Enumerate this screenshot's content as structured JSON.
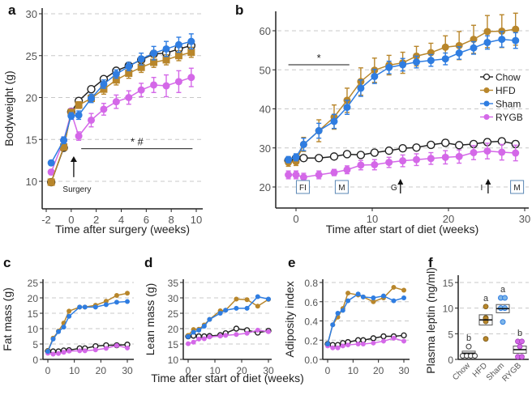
{
  "colors": {
    "Chow": "#222222",
    "HFD": "#b8862b",
    "Sham": "#2f7de1",
    "RYGB": "#d468e8",
    "box": "#5b87b5"
  },
  "chart_data": [
    {
      "id": "a",
      "type": "line",
      "panel_label": "a",
      "title": "",
      "xlabel": "Time after surgery (weeks)",
      "ylabel": "Bodyweight (g)",
      "xlim": [
        -2.3,
        10.2
      ],
      "ylim": [
        7.5,
        30
      ],
      "xticks": [
        -2,
        0,
        2,
        4,
        6,
        8,
        10
      ],
      "yticks": [
        10,
        15,
        20,
        25,
        30
      ],
      "grid": true,
      "x": [
        -1.6,
        -0.6,
        0,
        0.6,
        1.6,
        2.6,
        3.6,
        4.6,
        5.6,
        6.6,
        7.6,
        8.6,
        9.6
      ],
      "series": [
        {
          "name": "Chow",
          "marker": "open-circle",
          "values": [
            9.9,
            14.0,
            18.3,
            19.6,
            21.0,
            22.2,
            23.2,
            23.8,
            24.5,
            25.2,
            25.3,
            25.8,
            26.2
          ],
          "err": [
            0.3,
            0.3,
            0.3,
            0.3,
            0.3,
            0.3,
            0.3,
            0.3,
            0.4,
            0.4,
            0.4,
            0.5,
            0.5
          ]
        },
        {
          "name": "HFD",
          "marker": "square",
          "values": [
            9.9,
            14.1,
            18.2,
            19.1,
            19.9,
            21.0,
            22.1,
            22.9,
            23.6,
            24.2,
            24.5,
            25.0,
            25.4
          ],
          "err": [
            0.4,
            0.4,
            0.4,
            0.4,
            0.4,
            0.6,
            0.6,
            0.6,
            0.6,
            0.6,
            0.6,
            0.6,
            0.6
          ]
        },
        {
          "name": "Sham",
          "marker": "circle",
          "values": [
            12.2,
            14.9,
            17.8,
            17.9,
            19.9,
            21.6,
            22.8,
            23.7,
            24.6,
            25.3,
            25.8,
            26.3,
            26.7
          ],
          "err": [
            0.3,
            0.4,
            0.4,
            0.5,
            0.5,
            0.5,
            0.5,
            0.5,
            0.7,
            0.8,
            0.9,
            0.9,
            0.9
          ]
        },
        {
          "name": "RYGB",
          "marker": "circle",
          "values": [
            11.1,
            14.9,
            18.2,
            15.4,
            17.3,
            18.6,
            19.5,
            20.0,
            20.9,
            21.5,
            21.4,
            21.9,
            22.4
          ],
          "err": [
            0.3,
            0.4,
            0.5,
            0.5,
            0.8,
            0.7,
            0.8,
            0.8,
            0.8,
            0.9,
            1.3,
            1.3,
            1.1
          ]
        }
      ],
      "annotations": [
        {
          "text": "Surgery",
          "type": "arrow",
          "x": 0.2,
          "y_tip": 13,
          "y_base": 10.5
        },
        {
          "text": "* #",
          "type": "sigbar",
          "x_range": [
            0.8,
            9.7
          ],
          "y": 13.9
        }
      ]
    },
    {
      "id": "b",
      "type": "line",
      "panel_label": "b",
      "title": "",
      "xlabel": "Time after start of diet (weeks)",
      "ylabel": "",
      "xlim": [
        -2.5,
        30.5
      ],
      "ylim": [
        15,
        65
      ],
      "xticks": [
        0,
        10,
        20,
        30
      ],
      "yticks": [
        20,
        30,
        40,
        50,
        60
      ],
      "grid": true,
      "legend": "right",
      "legend_entries": [
        "Chow",
        "HFD",
        "Sham",
        "RYGB"
      ],
      "x": [
        -1,
        0,
        1,
        3,
        5,
        6.7,
        8.5,
        10.3,
        12.2,
        14,
        15.8,
        17.7,
        19.6,
        21.4,
        23.3,
        25.1,
        27,
        28.8
      ],
      "series": [
        {
          "name": "Chow",
          "marker": "open-circle",
          "values": [
            26.8,
            27.4,
            27.4,
            27.4,
            27.8,
            28.4,
            28.2,
            28.8,
            29.3,
            29.9,
            30.1,
            30.8,
            31.3,
            30.7,
            31.0,
            31.5,
            31.7,
            31.0
          ],
          "err": [
            0.6,
            0.6,
            0.6,
            0.6,
            0.6,
            0.6,
            0.7,
            0.7,
            0.7,
            0.7,
            0.7,
            0.7,
            0.8,
            0.7,
            0.7,
            0.8,
            0.8,
            0.8
          ]
        },
        {
          "name": "HFD",
          "marker": "circle",
          "values": [
            26.3,
            26.5,
            30.9,
            34.4,
            37.9,
            42.2,
            47.0,
            49.9,
            51.2,
            51.8,
            53.5,
            54.4,
            55.8,
            56.2,
            57.8,
            59.8,
            59.9,
            60.4
          ],
          "err": [
            1,
            1,
            1.8,
            2.8,
            3.1,
            3.1,
            3.5,
            3.1,
            2.5,
            2.7,
            2.5,
            2.4,
            2.9,
            3.6,
            3.6,
            4.1,
            4.2,
            4.1
          ]
        },
        {
          "name": "Sham",
          "marker": "circle",
          "values": [
            27.0,
            27.6,
            30.9,
            34.4,
            36.8,
            40.4,
            45.3,
            48.3,
            50.6,
            51.3,
            52.0,
            52.4,
            52.8,
            54.3,
            55.6,
            57.0,
            57.8,
            57.5
          ],
          "err": [
            0.8,
            0.9,
            1.6,
            1.9,
            1.8,
            1.8,
            2.1,
            1.8,
            1.6,
            1.6,
            1.5,
            1.5,
            1.5,
            1.6,
            1.6,
            1.7,
            2.0,
            2.0
          ]
        },
        {
          "name": "RYGB",
          "marker": "circle",
          "values": [
            23.1,
            23.1,
            22.5,
            23.1,
            23.7,
            24.4,
            25.6,
            25.7,
            26.3,
            26.7,
            27.0,
            27.3,
            27.6,
            27.8,
            28.8,
            29.2,
            28.9,
            28.7
          ],
          "err": [
            1,
            1,
            1,
            1,
            0.8,
            1,
            1.2,
            1.3,
            1.3,
            1.5,
            1.5,
            1.5,
            1.7,
            1.7,
            1.8,
            2,
            2,
            2
          ]
        }
      ],
      "annotations": [
        {
          "text": "*",
          "type": "sigbar",
          "x_range": [
            -1,
            7
          ],
          "y": 51.3
        },
        {
          "text": "FI",
          "type": "box",
          "x": 0.9
        },
        {
          "text": "M",
          "type": "box",
          "x": 6
        },
        {
          "text": "G",
          "type": "arrow",
          "x": 13.7
        },
        {
          "text": "I",
          "type": "arrow",
          "x": 25.2
        },
        {
          "text": "M",
          "type": "box",
          "x": 29
        }
      ]
    },
    {
      "id": "c",
      "type": "line",
      "panel_label": "c",
      "xlabel": "",
      "ylabel": "Fat mass (g)",
      "xlim": [
        -1.5,
        31.5
      ],
      "ylim": [
        0,
        25
      ],
      "xticks": [
        0,
        10,
        20,
        30
      ],
      "yticks": [
        0,
        5,
        10,
        15,
        20,
        25
      ],
      "grid": true,
      "x": [
        0,
        2,
        4,
        6,
        8,
        12,
        14,
        18,
        22,
        26,
        30
      ],
      "series": [
        {
          "name": "Chow",
          "marker": "open-circle",
          "values": [
            2.7,
            2.6,
            2.6,
            2.9,
            3.0,
            3.6,
            3.6,
            4.3,
            4.6,
            4.6,
            4.8
          ]
        },
        {
          "name": "HFD",
          "marker": "circle",
          "values": [
            2.8,
            6.9,
            9.2,
            11.8,
            15.7,
            17.0,
            17.0,
            17.6,
            18.9,
            20.8,
            21.5
          ]
        },
        {
          "name": "Sham",
          "marker": "circle",
          "values": [
            2.6,
            6.6,
            9.0,
            10.5,
            14.0,
            17.0,
            17.0,
            17.0,
            17.8,
            18.6,
            18.8
          ]
        },
        {
          "name": "RYGB",
          "marker": "circle",
          "values": [
            2.0,
            1.7,
            1.9,
            2.3,
            2.7,
            2.8,
            2.8,
            3.1,
            3.6,
            4.5,
            3.7
          ]
        }
      ]
    },
    {
      "id": "d",
      "type": "line",
      "panel_label": "d",
      "xlabel": "Time after start of diet (weeks)",
      "ylabel": "Lean mass (g)",
      "xlim": [
        -1.5,
        31.5
      ],
      "ylim": [
        10,
        35
      ],
      "xticks": [
        0,
        10,
        20,
        30
      ],
      "yticks": [
        10,
        15,
        20,
        25,
        30,
        35
      ],
      "grid": true,
      "x": [
        0,
        2,
        4,
        6,
        8,
        12,
        14,
        18,
        22,
        26,
        30
      ],
      "series": [
        {
          "name": "Chow",
          "marker": "open-circle",
          "values": [
            17.5,
            17.7,
            17.5,
            17.5,
            17.6,
            17.9,
            18.5,
            20.0,
            19.5,
            18.7,
            19.3
          ]
        },
        {
          "name": "HFD",
          "marker": "circle",
          "values": [
            17.8,
            19.7,
            19.8,
            21.2,
            23.0,
            25.8,
            26.0,
            29.6,
            29.4,
            27.3,
            29.5
          ]
        },
        {
          "name": "Sham",
          "marker": "circle",
          "values": [
            17.4,
            18.8,
            19.5,
            20.8,
            23.0,
            25.0,
            26.0,
            26.6,
            26.6,
            30.4,
            29.6
          ]
        },
        {
          "name": "RYGB",
          "marker": "circle",
          "values": [
            15.1,
            15.6,
            16.6,
            16.7,
            17.3,
            17.6,
            17.8,
            18.1,
            18.5,
            19.5,
            19.0
          ]
        }
      ]
    },
    {
      "id": "e",
      "type": "line",
      "panel_label": "e",
      "xlabel": "",
      "ylabel": "Adiposity index",
      "xlim": [
        -1.5,
        31.5
      ],
      "ylim": [
        0,
        0.8
      ],
      "xticks": [
        0,
        10,
        20,
        30
      ],
      "yticks": [
        0.0,
        0.2,
        0.4,
        0.6,
        0.8
      ],
      "ytick_labels": [
        "0.0",
        "0.2",
        "0.4",
        "0.6",
        "0.8"
      ],
      "grid": true,
      "x": [
        0,
        2,
        4,
        6,
        8,
        12,
        14,
        18,
        22,
        26,
        30
      ],
      "series": [
        {
          "name": "Chow",
          "marker": "open-circle",
          "values": [
            0.16,
            0.15,
            0.15,
            0.17,
            0.18,
            0.2,
            0.2,
            0.22,
            0.24,
            0.24,
            0.25
          ]
        },
        {
          "name": "HFD",
          "marker": "circle",
          "values": [
            0.16,
            0.36,
            0.44,
            0.53,
            0.69,
            0.67,
            0.65,
            0.6,
            0.64,
            0.75,
            0.72
          ]
        },
        {
          "name": "Sham",
          "marker": "circle",
          "values": [
            0.16,
            0.36,
            0.48,
            0.51,
            0.61,
            0.68,
            0.65,
            0.64,
            0.66,
            0.61,
            0.64
          ]
        },
        {
          "name": "RYGB",
          "marker": "circle",
          "values": [
            0.14,
            0.12,
            0.12,
            0.14,
            0.15,
            0.16,
            0.16,
            0.17,
            0.19,
            0.22,
            0.19
          ]
        }
      ]
    },
    {
      "id": "f",
      "type": "scatter",
      "panel_label": "f",
      "xlabel": "",
      "ylabel": "Plasma leptin (ng/ml)",
      "ylim": [
        0,
        15
      ],
      "yticks": [
        0,
        5,
        10,
        15
      ],
      "grid": true,
      "categories": [
        "Chow",
        "HFD",
        "Sham",
        "RYGB"
      ],
      "groups": [
        {
          "name": "Chow",
          "letter": "b",
          "points": [
            2.5,
            0.7,
            0.7,
            0.7,
            0.7
          ],
          "mean": 1.2,
          "sem": 0.4
        },
        {
          "name": "HFD",
          "letter": "a",
          "points": [
            10.3,
            8.1,
            8.0,
            7.4,
            4.0
          ],
          "mean": 7.7,
          "sem": 1.0
        },
        {
          "name": "Sham",
          "letter": "a",
          "points": [
            12.0,
            12.0,
            10.0,
            10.0,
            7.3
          ],
          "mean": 9.9,
          "sem": 0.8
        },
        {
          "name": "RYGB",
          "letter": "b",
          "points": [
            3.5,
            3.5,
            2.5,
            0.5,
            0.5
          ],
          "mean": 1.9,
          "sem": 0.7
        }
      ]
    }
  ]
}
